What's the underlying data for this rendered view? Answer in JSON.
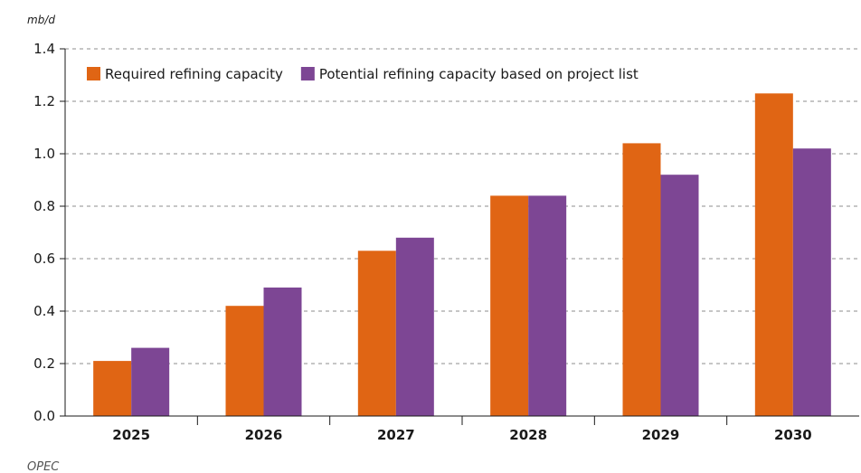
{
  "chart_data": {
    "type": "bar",
    "title": "",
    "xlabel": "",
    "ylabel": "mb/d",
    "categories": [
      "2025",
      "2026",
      "2027",
      "2028",
      "2029",
      "2030"
    ],
    "series": [
      {
        "name": "Required refining capacity",
        "color": "#e06514",
        "values": [
          0.21,
          0.42,
          0.63,
          0.84,
          1.04,
          1.23
        ]
      },
      {
        "name": "Potential refining capacity based on project list",
        "color": "#7d4694",
        "values": [
          0.26,
          0.49,
          0.68,
          0.84,
          0.92,
          1.02
        ]
      }
    ],
    "ylim": [
      0,
      1.4
    ],
    "yticks": [
      "0.0",
      "0.2",
      "0.4",
      "0.6",
      "0.8",
      "1.0",
      "1.2",
      "1.4"
    ],
    "grid": true,
    "legend_position": "top-left"
  },
  "source": "OPEC"
}
